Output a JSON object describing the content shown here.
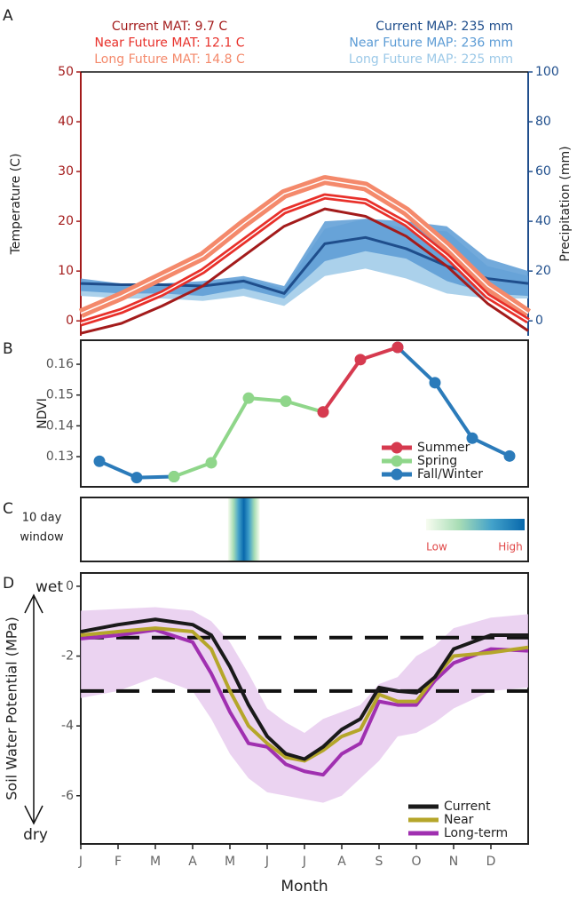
{
  "chart_data": [
    {
      "type": "line",
      "panel_label": "A",
      "ylabel": "Temperature (C)",
      "y2label": "Precipitation (mm)",
      "x": [
        0.5,
        1.5,
        2.5,
        3.5,
        4.5,
        5.5,
        6.5,
        7.5,
        8.5,
        9.5,
        10.5,
        11.5
      ],
      "xlim": [
        0.5,
        11.5
      ],
      "ylim": [
        -3,
        50
      ],
      "yticks": [
        0,
        10,
        20,
        30,
        40,
        50
      ],
      "y2lim": [
        -6,
        100
      ],
      "y2ticks": [
        0,
        20,
        40,
        60,
        80,
        100
      ],
      "ycolor": "#a31b1b",
      "y2color": "#1f4e8c",
      "series": [
        {
          "name": "Current MAT",
          "annotation": "Current MAT: 9.7 C",
          "color": "#a31b1b",
          "line_width": 3,
          "values": [
            -2.5,
            -0.5,
            3,
            7,
            13,
            19,
            22.5,
            21,
            17,
            11,
            3.5,
            -2
          ]
        },
        {
          "name": "Near Future MAT",
          "annotation": "Near Future MAT: 12.1 C",
          "color": "#e8302a",
          "line_width": 7,
          "values": [
            -0.5,
            2,
            5.5,
            10,
            16,
            22,
            25,
            24,
            19.5,
            13,
            5,
            0
          ]
        },
        {
          "name": "Long Future MAT",
          "annotation": "Long Future MAT: 14.8 C",
          "color": "#f4896b",
          "line_width": 11,
          "values": [
            1.5,
            5,
            9,
            13,
            19.5,
            25.5,
            28.3,
            27,
            22,
            15,
            7,
            1.5
          ]
        },
        {
          "name": "Current MAP",
          "annotation": "Current MAP: 235 mm",
          "axis": "y2",
          "color": "#1f4e8c",
          "line_width": 3,
          "values": [
            15,
            14.5,
            14.5,
            14,
            16,
            11,
            31,
            33.5,
            29,
            22,
            17,
            15
          ]
        },
        {
          "name": "Near Future MAP",
          "annotation": "Near Future MAP: 236 mm",
          "axis": "y2",
          "color": "#5b9bd5",
          "lower": [
            12,
            11,
            11,
            10,
            13,
            9,
            24,
            28,
            25,
            16,
            11,
            10
          ],
          "upper": [
            17,
            15,
            15,
            16,
            18,
            14,
            40,
            41,
            40,
            38,
            25,
            20
          ]
        },
        {
          "name": "Long Future MAP",
          "annotation": "Long Future MAP: 225 mm",
          "axis": "y2",
          "color": "#9cc9e8",
          "lower": [
            10,
            9,
            9,
            8,
            10,
            6,
            18,
            21,
            17,
            11,
            9,
            9
          ],
          "upper": [
            16,
            15,
            15,
            15,
            17,
            13,
            37,
            41,
            37,
            36,
            22,
            18
          ]
        }
      ]
    },
    {
      "type": "line",
      "panel_label": "B",
      "ylabel": "NDVI",
      "box": true,
      "markers": true,
      "legend": "lower right",
      "x": [
        0.5,
        1.5,
        2.5,
        3.5,
        4.5,
        5.5,
        6.5,
        7.5,
        8.5,
        9.5,
        10.5,
        11.5
      ],
      "xlim": [
        0,
        12
      ],
      "ylim": [
        0.1202,
        0.1678
      ],
      "yticks": [
        0.13,
        0.14,
        0.15,
        0.16
      ],
      "series": [
        {
          "name": "Summer",
          "color": "#d63a4f",
          "line_width": 4,
          "values": [
            null,
            null,
            null,
            null,
            null,
            null,
            0.1445,
            0.1615,
            0.1655,
            null,
            null,
            null
          ]
        },
        {
          "name": "Spring",
          "color": "#8fd68a",
          "line_width": 4,
          "values": [
            null,
            null,
            0.1235,
            0.128,
            0.149,
            0.148,
            0.1445,
            null,
            null,
            null,
            null,
            null
          ]
        },
        {
          "name": "Fall/Winter",
          "color": "#2b7bba",
          "line_width": 4,
          "values": [
            0.1285,
            0.1232,
            0.1235,
            null,
            null,
            null,
            null,
            null,
            0.1655,
            0.154,
            0.136,
            0.1302
          ]
        }
      ]
    },
    {
      "type": "heatmap",
      "panel_label": "C",
      "label": [
        "10 day",
        "window"
      ],
      "xlim": [
        0,
        12
      ],
      "window": [
        3.95,
        4.8
      ],
      "colors": [
        "#f7fcf0",
        "#a8ddb5",
        "#43a2ca",
        "#0868ac"
      ],
      "colorbar_labels": [
        "Low",
        "High"
      ]
    },
    {
      "type": "line",
      "panel_label": "D",
      "ylabel": "Soil Water Potential (MPa)",
      "xlabel": "Month",
      "box": true,
      "legend": "lower right",
      "direction_labels": [
        "wet",
        "dry"
      ],
      "x": [
        0,
        1,
        2,
        3,
        3.5,
        4,
        4.5,
        5,
        5.5,
        6,
        6.5,
        7,
        7.5,
        8,
        8.5,
        9,
        9.5,
        10,
        11,
        12
      ],
      "xlim": [
        0,
        12
      ],
      "xticks": [
        {
          "value": 0,
          "label": "J"
        },
        {
          "value": 1,
          "label": "F"
        },
        {
          "value": 2,
          "label": "M"
        },
        {
          "value": 3,
          "label": "A"
        },
        {
          "value": 4,
          "label": "M"
        },
        {
          "value": 5,
          "label": "J"
        },
        {
          "value": 6,
          "label": "J"
        },
        {
          "value": 7,
          "label": "A"
        },
        {
          "value": 8,
          "label": "S"
        },
        {
          "value": 9,
          "label": "O"
        },
        {
          "value": 10,
          "label": "N"
        },
        {
          "value": 11,
          "label": "D"
        }
      ],
      "ylim": [
        -7.38,
        0.38
      ],
      "yticks": [
        0,
        -2,
        -4,
        -6
      ],
      "hlines": [
        -1.47,
        -3
      ],
      "series": [
        {
          "name": "Current",
          "color": "#1a1a1a",
          "line_width": 4,
          "values": [
            -1.3,
            -1.1,
            -0.95,
            -1.1,
            -1.4,
            -2.3,
            -3.4,
            -4.3,
            -4.8,
            -4.95,
            -4.6,
            -4.1,
            -3.8,
            -2.9,
            -3.0,
            -3.05,
            -2.6,
            -1.8,
            -1.4,
            -1.4
          ]
        },
        {
          "name": "Near",
          "color": "#b5a62a",
          "line_width": 4,
          "values": [
            -1.4,
            -1.3,
            -1.2,
            -1.3,
            -1.8,
            -3.0,
            -4.0,
            -4.5,
            -4.9,
            -5.0,
            -4.7,
            -4.3,
            -4.1,
            -3.1,
            -3.3,
            -3.3,
            -2.6,
            -2.0,
            -1.9,
            -1.75
          ]
        },
        {
          "name": "Long-term",
          "color": "#a030b0",
          "band_color": "#e6c8ee",
          "line_width": 4,
          "values": [
            -1.5,
            -1.4,
            -1.25,
            -1.6,
            -2.5,
            -3.6,
            -4.5,
            -4.6,
            -5.1,
            -5.3,
            -5.4,
            -4.8,
            -4.5,
            -3.3,
            -3.4,
            -3.4,
            -2.7,
            -2.2,
            -1.8,
            -1.85
          ],
          "lower": [
            -3.2,
            -3.0,
            -2.6,
            -3.0,
            -3.8,
            -4.8,
            -5.5,
            -5.9,
            -6.0,
            -6.1,
            -6.2,
            -6.0,
            -5.5,
            -5.0,
            -4.3,
            -4.2,
            -3.9,
            -3.5,
            -3.0,
            -2.9
          ],
          "upper": [
            -0.7,
            -0.65,
            -0.6,
            -0.7,
            -1.0,
            -1.6,
            -2.5,
            -3.5,
            -3.9,
            -4.2,
            -3.8,
            -3.6,
            -3.4,
            -2.8,
            -2.6,
            -2.0,
            -1.7,
            -1.2,
            -0.9,
            -0.8
          ]
        }
      ]
    }
  ]
}
